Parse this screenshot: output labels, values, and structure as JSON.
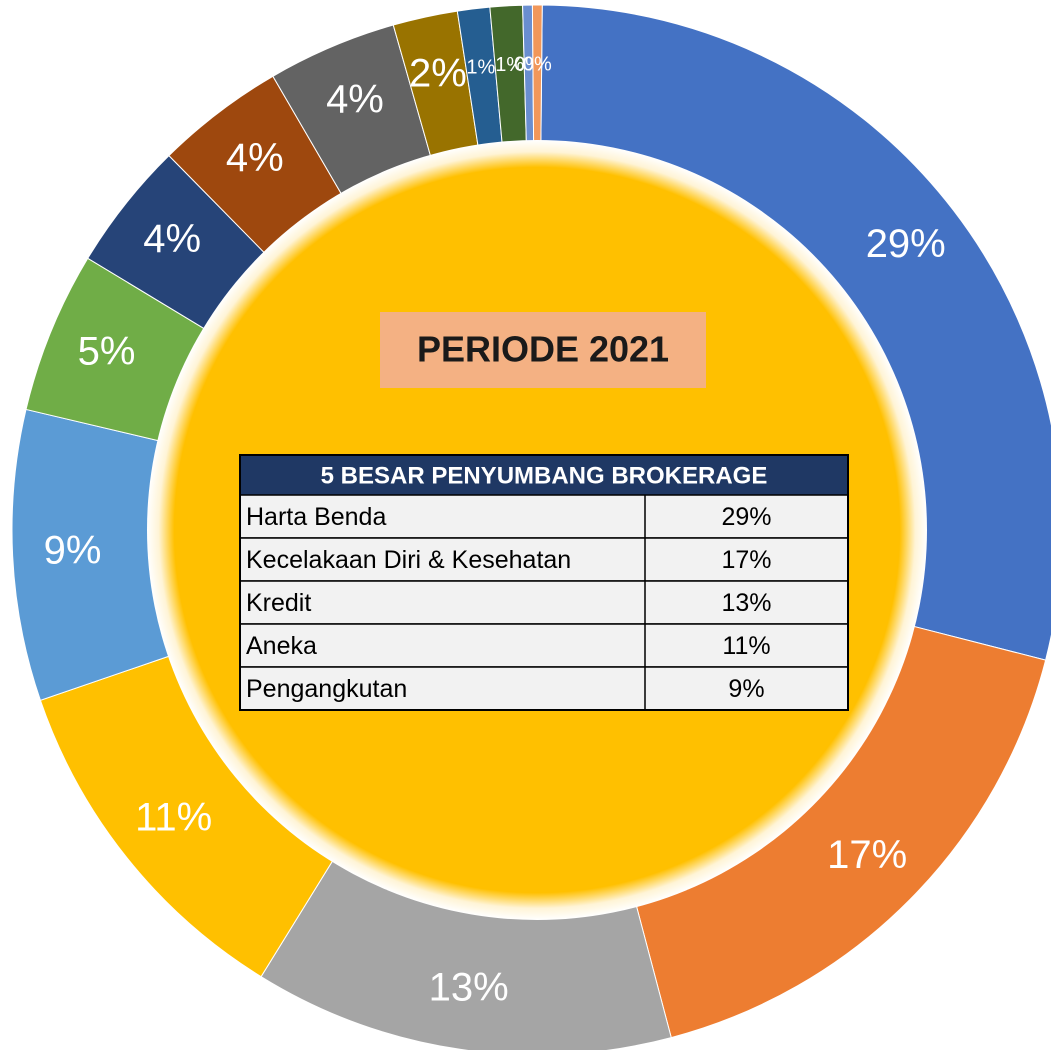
{
  "chart_data": {
    "type": "pie",
    "title": "PERIODE 2021",
    "values": [
      29,
      17,
      13,
      11,
      9,
      5,
      4,
      4,
      4,
      2,
      1,
      1,
      0.3,
      0.3
    ],
    "value_labels": [
      "29%",
      "17%",
      "13%",
      "11%",
      "9%",
      "5%",
      "4%",
      "4%",
      "4%",
      "2%",
      "1%",
      "1%",
      "0%",
      "0%"
    ],
    "colors": [
      "#4472c4",
      "#ed7d31",
      "#a5a5a5",
      "#ffc000",
      "#5b9bd5",
      "#70ad47",
      "#264478",
      "#9e480e",
      "#636363",
      "#997300",
      "#255e91",
      "#43682b",
      "#698ed0",
      "#f1975a"
    ]
  },
  "table": {
    "title": "5 BESAR PENYUMBANG BROKERAGE",
    "rows": [
      [
        "Harta Benda",
        "29%"
      ],
      [
        "Kecelakaan Diri & Kesehatan",
        "17%"
      ],
      [
        "Kredit",
        "13%"
      ],
      [
        "Aneka",
        "11%"
      ],
      [
        "Pengangkutan",
        "9%"
      ]
    ]
  }
}
